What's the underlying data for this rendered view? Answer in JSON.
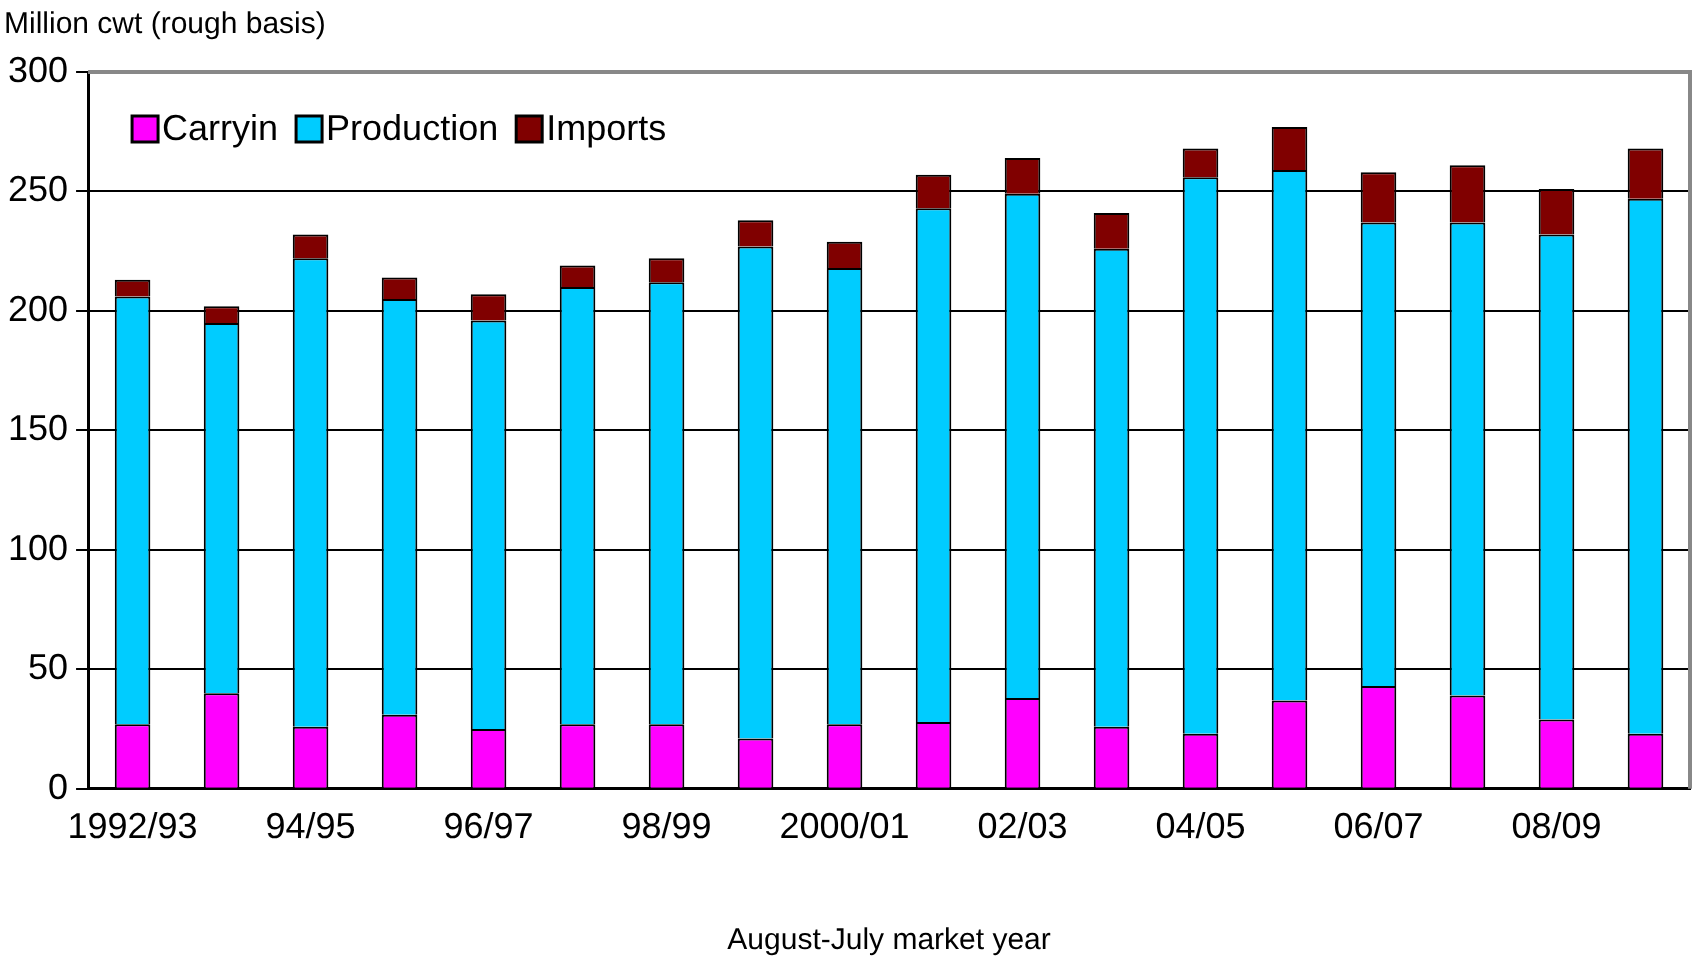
{
  "chart_data": {
    "type": "bar",
    "stacked": true,
    "ylabel": "Million cwt (rough basis)",
    "xlabel": "August-July market year",
    "categories": [
      "1992/93",
      null,
      "94/95",
      null,
      "96/97",
      null,
      "98/99",
      null,
      "2000/01",
      null,
      "02/03",
      null,
      "04/05",
      null,
      "06/07",
      null,
      "08/09",
      null
    ],
    "series": [
      {
        "name": "Carryin",
        "color": "#ff00ff",
        "values": [
          27,
          40,
          26,
          31,
          25,
          27,
          27,
          21,
          27,
          28,
          38,
          26,
          23,
          37,
          43,
          39,
          29,
          23
        ]
      },
      {
        "name": "Production",
        "color": "#00ccff",
        "values": [
          179,
          155,
          196,
          174,
          171,
          183,
          185,
          206,
          191,
          215,
          211,
          200,
          233,
          222,
          194,
          198,
          203,
          224
        ]
      },
      {
        "name": "Imports",
        "color": "#800000",
        "values": [
          7,
          7,
          10,
          9,
          11,
          9,
          10,
          11,
          11,
          14,
          15,
          15,
          12,
          18,
          21,
          24,
          19,
          21
        ]
      }
    ],
    "ylim": [
      0,
      300
    ],
    "yticks": [
      0,
      50,
      100,
      150,
      200,
      250,
      300
    ],
    "grid": "y",
    "legend": "top left"
  }
}
